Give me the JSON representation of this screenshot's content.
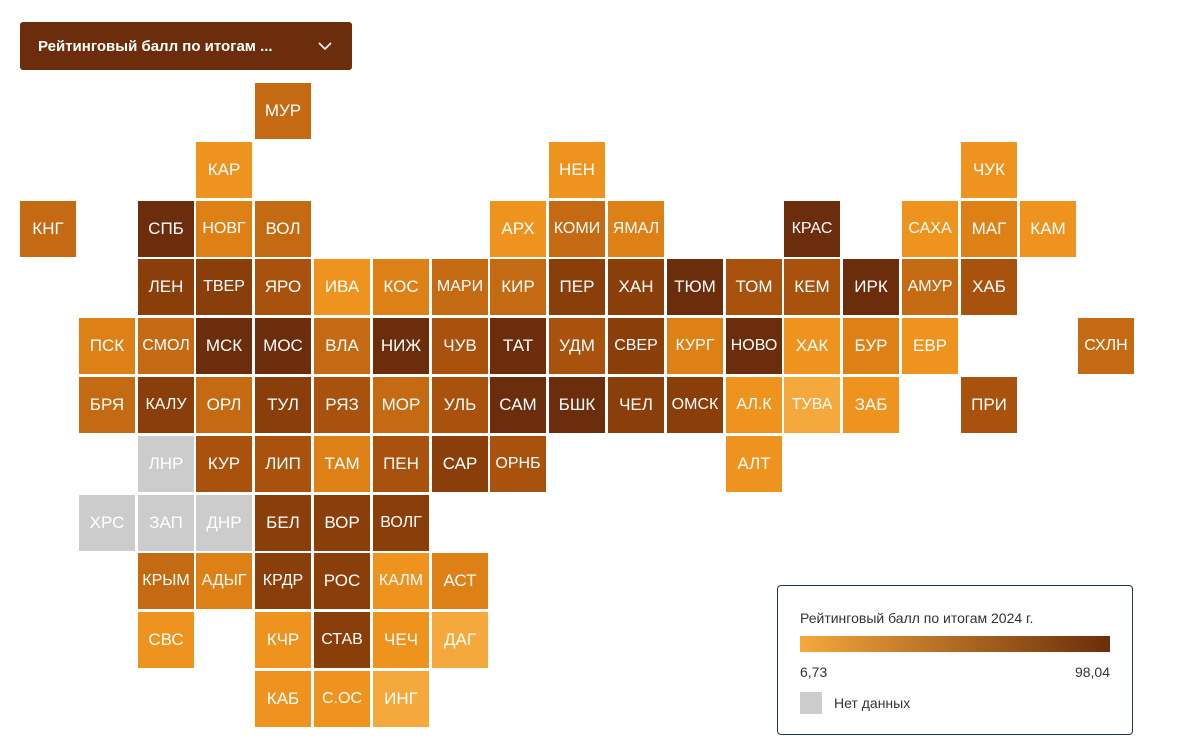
{
  "dropdown": {
    "label": "Рейтинговый балл по итогам ..."
  },
  "colors": {
    "c1": "#6b2d0b",
    "c2": "#8a3e0a",
    "c3": "#a8520d",
    "c4": "#c36a12",
    "c5": "#dd8117",
    "c6": "#ef931f",
    "c7": "#f5a83c",
    "nodata": "#cccccc"
  },
  "tiles": [
    {
      "label": "МУР",
      "col": 4,
      "row": 0,
      "color": "c4"
    },
    {
      "label": "КАР",
      "col": 3,
      "row": 1,
      "color": "c6"
    },
    {
      "label": "НЕН",
      "col": 9,
      "row": 1,
      "color": "c6"
    },
    {
      "label": "ЧУК",
      "col": 16,
      "row": 1,
      "color": "c6"
    },
    {
      "label": "КНГ",
      "col": 0,
      "row": 2,
      "color": "c4"
    },
    {
      "label": "СПБ",
      "col": 2,
      "row": 2,
      "color": "c1"
    },
    {
      "label": "НОВГ",
      "col": 3,
      "row": 2,
      "color": "c5"
    },
    {
      "label": "ВОЛ",
      "col": 4,
      "row": 2,
      "color": "c4"
    },
    {
      "label": "АРХ",
      "col": 8,
      "row": 2,
      "color": "c6"
    },
    {
      "label": "КОМИ",
      "col": 9,
      "row": 2,
      "color": "c4"
    },
    {
      "label": "ЯМАЛ",
      "col": 10,
      "row": 2,
      "color": "c5"
    },
    {
      "label": "КРАС",
      "col": 13,
      "row": 2,
      "color": "c1"
    },
    {
      "label": "САХА",
      "col": 15,
      "row": 2,
      "color": "c6"
    },
    {
      "label": "МАГ",
      "col": 16,
      "row": 2,
      "color": "c5"
    },
    {
      "label": "КАМ",
      "col": 17,
      "row": 2,
      "color": "c6"
    },
    {
      "label": "ЛЕН",
      "col": 2,
      "row": 3,
      "color": "c2"
    },
    {
      "label": "ТВЕР",
      "col": 3,
      "row": 3,
      "color": "c2"
    },
    {
      "label": "ЯРО",
      "col": 4,
      "row": 3,
      "color": "c3"
    },
    {
      "label": "ИВА",
      "col": 5,
      "row": 3,
      "color": "c6"
    },
    {
      "label": "КОС",
      "col": 6,
      "row": 3,
      "color": "c5"
    },
    {
      "label": "МАРИ",
      "col": 7,
      "row": 3,
      "color": "c4"
    },
    {
      "label": "КИР",
      "col": 8,
      "row": 3,
      "color": "c4"
    },
    {
      "label": "ПЕР",
      "col": 9,
      "row": 3,
      "color": "c2"
    },
    {
      "label": "ХАН",
      "col": 10,
      "row": 3,
      "color": "c2"
    },
    {
      "label": "ТЮМ",
      "col": 11,
      "row": 3,
      "color": "c1"
    },
    {
      "label": "ТОМ",
      "col": 12,
      "row": 3,
      "color": "c3"
    },
    {
      "label": "КЕМ",
      "col": 13,
      "row": 3,
      "color": "c3"
    },
    {
      "label": "ИРК",
      "col": 14,
      "row": 3,
      "color": "c1"
    },
    {
      "label": "АМУР",
      "col": 15,
      "row": 3,
      "color": "c4"
    },
    {
      "label": "ХАБ",
      "col": 16,
      "row": 3,
      "color": "c3"
    },
    {
      "label": "ПСК",
      "col": 1,
      "row": 4,
      "color": "c5"
    },
    {
      "label": "СМОЛ",
      "col": 2,
      "row": 4,
      "color": "c4"
    },
    {
      "label": "МСК",
      "col": 3,
      "row": 4,
      "color": "c1"
    },
    {
      "label": "МОС",
      "col": 4,
      "row": 4,
      "color": "c1"
    },
    {
      "label": "ВЛА",
      "col": 5,
      "row": 4,
      "color": "c4"
    },
    {
      "label": "НИЖ",
      "col": 6,
      "row": 4,
      "color": "c1"
    },
    {
      "label": "ЧУВ",
      "col": 7,
      "row": 4,
      "color": "c3"
    },
    {
      "label": "ТАТ",
      "col": 8,
      "row": 4,
      "color": "c1"
    },
    {
      "label": "УДМ",
      "col": 9,
      "row": 4,
      "color": "c3"
    },
    {
      "label": "СВЕР",
      "col": 10,
      "row": 4,
      "color": "c2"
    },
    {
      "label": "КУРГ",
      "col": 11,
      "row": 4,
      "color": "c5"
    },
    {
      "label": "НОВО",
      "col": 12,
      "row": 4,
      "color": "c1"
    },
    {
      "label": "ХАК",
      "col": 13,
      "row": 4,
      "color": "c6"
    },
    {
      "label": "БУР",
      "col": 14,
      "row": 4,
      "color": "c5"
    },
    {
      "label": "ЕВР",
      "col": 15,
      "row": 4,
      "color": "c6"
    },
    {
      "label": "СХЛН",
      "col": 18,
      "row": 4,
      "color": "c4"
    },
    {
      "label": "БРЯ",
      "col": 1,
      "row": 5,
      "color": "c4"
    },
    {
      "label": "КАЛУ",
      "col": 2,
      "row": 5,
      "color": "c2"
    },
    {
      "label": "ОРЛ",
      "col": 3,
      "row": 5,
      "color": "c4"
    },
    {
      "label": "ТУЛ",
      "col": 4,
      "row": 5,
      "color": "c2"
    },
    {
      "label": "РЯЗ",
      "col": 5,
      "row": 5,
      "color": "c3"
    },
    {
      "label": "МОР",
      "col": 6,
      "row": 5,
      "color": "c4"
    },
    {
      "label": "УЛЬ",
      "col": 7,
      "row": 5,
      "color": "c3"
    },
    {
      "label": "САМ",
      "col": 8,
      "row": 5,
      "color": "c1"
    },
    {
      "label": "БШК",
      "col": 9,
      "row": 5,
      "color": "c1"
    },
    {
      "label": "ЧЕЛ",
      "col": 10,
      "row": 5,
      "color": "c2"
    },
    {
      "label": "ОМСК",
      "col": 11,
      "row": 5,
      "color": "c2"
    },
    {
      "label": "АЛ.К",
      "col": 12,
      "row": 5,
      "color": "c6"
    },
    {
      "label": "ТУВА",
      "col": 13,
      "row": 5,
      "color": "c7"
    },
    {
      "label": "ЗАБ",
      "col": 14,
      "row": 5,
      "color": "c6"
    },
    {
      "label": "ПРИ",
      "col": 16,
      "row": 5,
      "color": "c3"
    },
    {
      "label": "ЛНР",
      "col": 2,
      "row": 6,
      "color": "nodata"
    },
    {
      "label": "КУР",
      "col": 3,
      "row": 6,
      "color": "c3"
    },
    {
      "label": "ЛИП",
      "col": 4,
      "row": 6,
      "color": "c3"
    },
    {
      "label": "ТАМ",
      "col": 5,
      "row": 6,
      "color": "c5"
    },
    {
      "label": "ПЕН",
      "col": 6,
      "row": 6,
      "color": "c3"
    },
    {
      "label": "САР",
      "col": 7,
      "row": 6,
      "color": "c2"
    },
    {
      "label": "ОРНБ",
      "col": 8,
      "row": 6,
      "color": "c3"
    },
    {
      "label": "АЛТ",
      "col": 12,
      "row": 6,
      "color": "c6"
    },
    {
      "label": "ХРС",
      "col": 1,
      "row": 7,
      "color": "nodata"
    },
    {
      "label": "ЗАП",
      "col": 2,
      "row": 7,
      "color": "nodata"
    },
    {
      "label": "ДНР",
      "col": 3,
      "row": 7,
      "color": "nodata"
    },
    {
      "label": "БЕЛ",
      "col": 4,
      "row": 7,
      "color": "c2"
    },
    {
      "label": "ВОР",
      "col": 5,
      "row": 7,
      "color": "c2"
    },
    {
      "label": "ВОЛГ",
      "col": 6,
      "row": 7,
      "color": "c2"
    },
    {
      "label": "КРЫМ",
      "col": 2,
      "row": 8,
      "color": "c4"
    },
    {
      "label": "АДЫГ",
      "col": 3,
      "row": 8,
      "color": "c5"
    },
    {
      "label": "КРДР",
      "col": 4,
      "row": 8,
      "color": "c2"
    },
    {
      "label": "РОС",
      "col": 5,
      "row": 8,
      "color": "c2"
    },
    {
      "label": "КАЛМ",
      "col": 6,
      "row": 8,
      "color": "c6"
    },
    {
      "label": "АСТ",
      "col": 7,
      "row": 8,
      "color": "c5"
    },
    {
      "label": "СВС",
      "col": 2,
      "row": 9,
      "color": "c6"
    },
    {
      "label": "КЧР",
      "col": 4,
      "row": 9,
      "color": "c6"
    },
    {
      "label": "СТАВ",
      "col": 5,
      "row": 9,
      "color": "c2"
    },
    {
      "label": "ЧЕЧ",
      "col": 6,
      "row": 9,
      "color": "c6"
    },
    {
      "label": "ДАГ",
      "col": 7,
      "row": 9,
      "color": "c7"
    },
    {
      "label": "КАБ",
      "col": 4,
      "row": 10,
      "color": "c6"
    },
    {
      "label": "С.ОС",
      "col": 5,
      "row": 10,
      "color": "c6"
    },
    {
      "label": "ИНГ",
      "col": 6,
      "row": 10,
      "color": "c7"
    }
  ],
  "legend": {
    "title": "Рейтинговый балл по итогам 2024 г.",
    "min": "6,73",
    "max": "98,04",
    "min_color": "#f5a83c",
    "max_color": "#6b2d0b",
    "nodata_label": "Нет данных"
  }
}
